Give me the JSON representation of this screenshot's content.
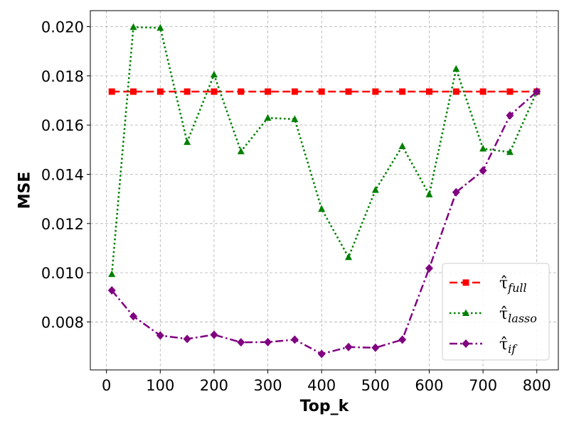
{
  "chart_data": {
    "type": "line",
    "xlabel": "Top_k",
    "ylabel": "MSE",
    "xlim": [
      -30,
      840
    ],
    "ylim": [
      0.00605,
      0.02065
    ],
    "xticks": [
      0,
      100,
      200,
      300,
      400,
      500,
      600,
      700,
      800
    ],
    "xtick_labels": [
      "0",
      "100",
      "200",
      "300",
      "400",
      "500",
      "600",
      "700",
      "800"
    ],
    "yticks": [
      0.008,
      0.01,
      0.012,
      0.014,
      0.016,
      0.018,
      0.02
    ],
    "ytick_labels": [
      "0.008",
      "0.010",
      "0.012",
      "0.014",
      "0.016",
      "0.018",
      "0.020"
    ],
    "grid": true,
    "legend_position": "lower-right",
    "x": [
      10,
      50,
      100,
      150,
      200,
      250,
      300,
      350,
      400,
      450,
      500,
      550,
      600,
      650,
      700,
      750,
      800
    ],
    "series": [
      {
        "name": "full",
        "legend_symbol": "τ̂",
        "color": "#ff0000",
        "marker": "square",
        "linestyle": "dashed",
        "values": [
          0.01736,
          0.01736,
          0.01736,
          0.01736,
          0.01736,
          0.01736,
          0.01736,
          0.01736,
          0.01736,
          0.01736,
          0.01736,
          0.01736,
          0.01736,
          0.01736,
          0.01736,
          0.01736,
          0.01736
        ]
      },
      {
        "name": "lasso",
        "legend_symbol": "τ̂",
        "color": "#008000",
        "marker": "triangle",
        "linestyle": "dotted",
        "values": [
          0.00994,
          0.01998,
          0.01995,
          0.01531,
          0.01805,
          0.01493,
          0.01629,
          0.01624,
          0.01259,
          0.01063,
          0.01336,
          0.01514,
          0.01318,
          0.01828,
          0.01504,
          0.0149,
          0.01736
        ]
      },
      {
        "name": "if",
        "legend_symbol": "τ̂",
        "color": "#800080",
        "marker": "diamond",
        "linestyle": "dashdot",
        "values": [
          0.00928,
          0.00823,
          0.00745,
          0.00731,
          0.00748,
          0.00717,
          0.00718,
          0.00728,
          0.0067,
          0.00698,
          0.00695,
          0.00728,
          0.01018,
          0.01327,
          0.01415,
          0.01639,
          0.01736
        ]
      }
    ]
  }
}
